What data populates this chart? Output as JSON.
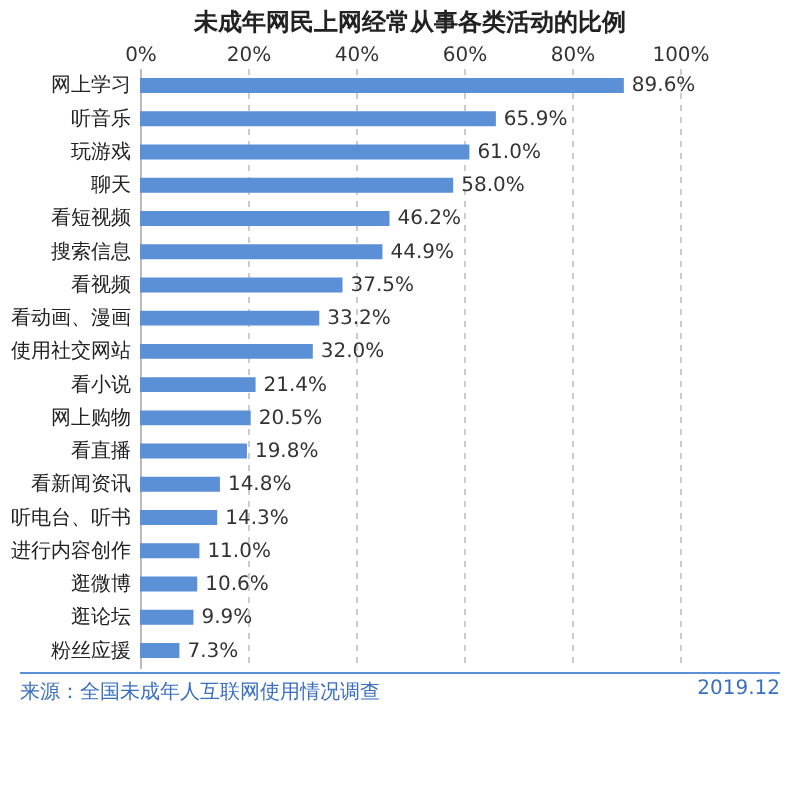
{
  "chart_data": {
    "type": "bar",
    "orientation": "horizontal",
    "title": "未成年网民上网经常从事各类活动的比例",
    "categories": [
      "网上学习",
      "听音乐",
      "玩游戏",
      "聊天",
      "看短视频",
      "搜索信息",
      "看视频",
      "看动画、漫画",
      "使用社交网站",
      "看小说",
      "网上购物",
      "看直播",
      "看新闻资讯",
      "听电台、听书",
      "进行内容创作",
      "逛微博",
      "逛论坛",
      "粉丝应援"
    ],
    "values": [
      89.6,
      65.9,
      61.0,
      58.0,
      46.2,
      44.9,
      37.5,
      33.2,
      32.0,
      21.4,
      20.5,
      19.8,
      14.8,
      14.3,
      11.0,
      10.6,
      9.9,
      7.3
    ],
    "value_labels": [
      "89.6%",
      "65.9%",
      "61.0%",
      "58.0%",
      "46.2%",
      "44.9%",
      "37.5%",
      "33.2%",
      "32.0%",
      "21.4%",
      "20.5%",
      "19.8%",
      "14.8%",
      "14.3%",
      "11.0%",
      "10.6%",
      "9.9%",
      "7.3%"
    ],
    "color": "#5b8fd6",
    "xlim": [
      0,
      100
    ],
    "xticks": [
      {
        "value": 0,
        "label": "0%"
      },
      {
        "value": 20,
        "label": "20%"
      },
      {
        "value": 40,
        "label": "40%"
      },
      {
        "value": 60,
        "label": "60%"
      },
      {
        "value": 80,
        "label": "80%"
      },
      {
        "value": 100,
        "label": "100%"
      }
    ],
    "grid": "x",
    "annotations": [
      "来源：全国未成年人互联网使用情况调查",
      "2019.12"
    ]
  }
}
